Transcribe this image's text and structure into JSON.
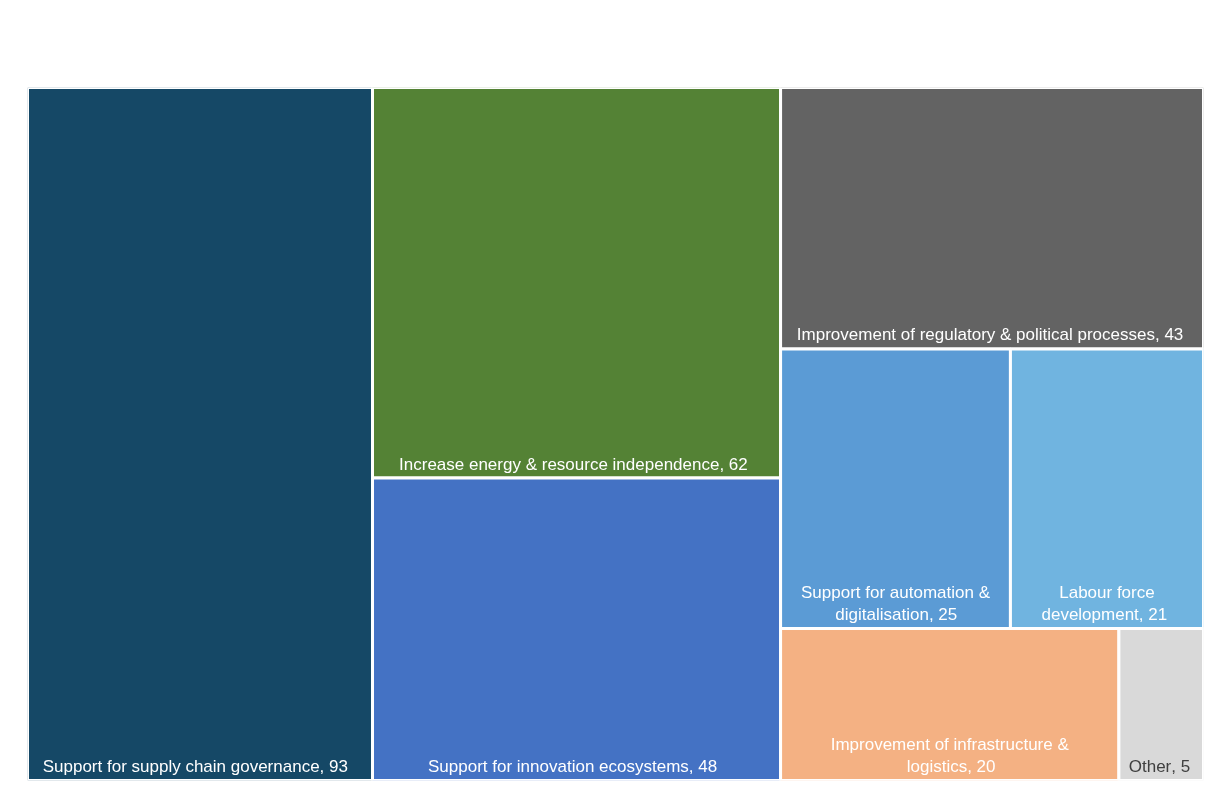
{
  "chart_data": {
    "type": "other",
    "categories": [
      "Support for supply chain governance",
      "Increase energy & resource independence",
      "Support for innovation ecosystems",
      "Improvement of regulatory & political processes",
      "Support for automation & digitalisation",
      "Labour force development",
      "Improvement of infrastructure & logistics",
      "Other"
    ],
    "values": [
      93,
      62,
      48,
      43,
      25,
      21,
      20,
      5
    ],
    "value_labels": [
      ", 93",
      ", 62",
      ", 48",
      ", 43",
      ", 25",
      ", 21",
      ", 20",
      ", 5"
    ],
    "colors": [
      "#154866",
      "#548235",
      "#4472c4",
      "#636363",
      "#5b9bd5",
      "#70b4e0",
      "#f4b183",
      "#d9d9d9"
    ]
  }
}
